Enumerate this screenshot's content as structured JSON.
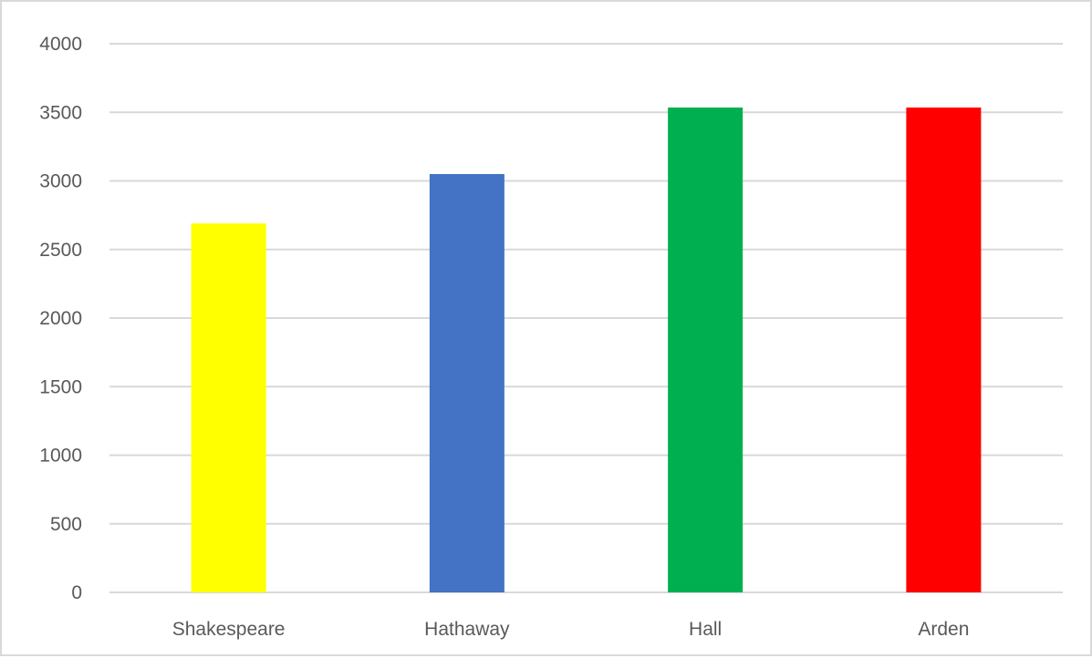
{
  "chart_data": {
    "type": "bar",
    "categories": [
      "Shakespeare",
      "Hathaway",
      "Hall",
      "Arden"
    ],
    "values": [
      2690,
      3050,
      3535,
      3535
    ],
    "colors": [
      "#ffff00",
      "#4472c4",
      "#00b050",
      "#ff0000"
    ],
    "title": "",
    "xlabel": "",
    "ylabel": "",
    "ylim": [
      0,
      4000
    ],
    "yticks": [
      "0",
      "500",
      "1000",
      "1500",
      "2000",
      "2500",
      "3000",
      "3500",
      "4000"
    ],
    "grid": true,
    "legend": "none"
  }
}
